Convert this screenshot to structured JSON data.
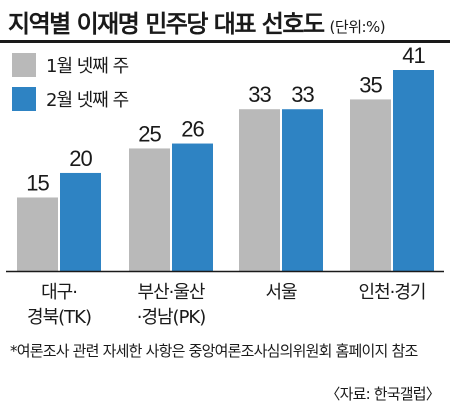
{
  "colors": {
    "series1": "#b9b9b9",
    "series2": "#2e83c3",
    "axis": "#1a1a1a"
  },
  "chart_data": {
    "type": "bar",
    "title": "지역별 이재명 민주당 대표 선호도",
    "unit": "(단위:%)",
    "categories": [
      [
        "대구·",
        "경북(TK)"
      ],
      [
        "부산·울산",
        "·경남(PK)"
      ],
      [
        "서울"
      ],
      [
        "인천·경기"
      ]
    ],
    "series": [
      {
        "name": "1월 넷째 주",
        "values": [
          15,
          25,
          33,
          35
        ]
      },
      {
        "name": "2월 넷째 주",
        "values": [
          20,
          26,
          33,
          41
        ]
      }
    ],
    "ylim": [
      0,
      41
    ]
  },
  "footnote": "*여론조사 관련 자세한 사항은 중앙여론조사심의위원회 홈페이지 참조",
  "source": "〈자료: 한국갤럽〉"
}
